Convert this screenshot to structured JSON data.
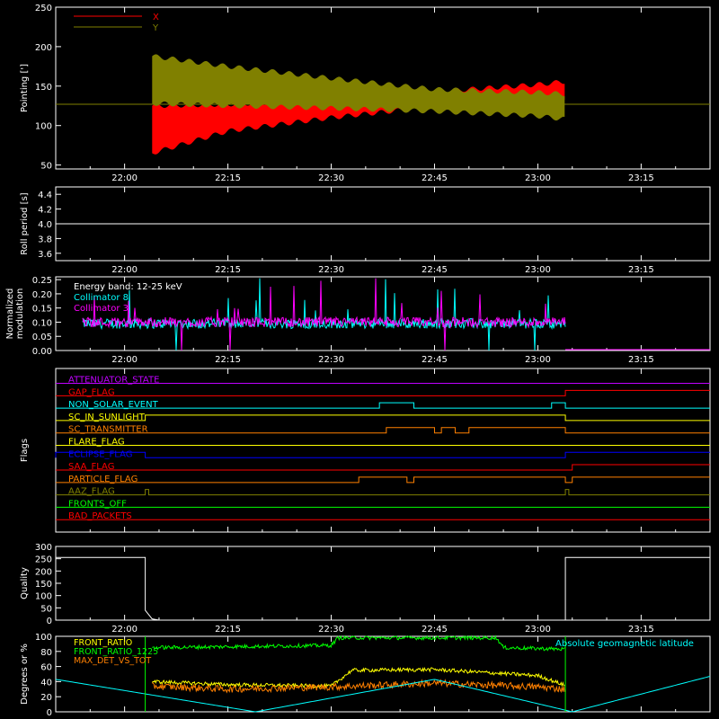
{
  "x_axis": {
    "ticks": [
      "22:00",
      "22:15",
      "22:30",
      "22:45",
      "23:00",
      "23:15"
    ],
    "range": [
      "21:50",
      "23:25"
    ]
  },
  "colors": {
    "background": "#000000",
    "axes": "#ffffff",
    "red": "#ff0000",
    "olive": "#808000",
    "cyan": "#00ffff",
    "magenta": "#ff00ff",
    "green": "#00ff00",
    "orange": "#ff8000",
    "yellow": "#ffff00",
    "blue": "#0000ff",
    "purple": "#c000ff"
  },
  "chart_data": [
    {
      "type": "line",
      "ylabel": "Pointing [']",
      "ylim": [
        45,
        250
      ],
      "yticks": [
        "50",
        "100",
        "150",
        "200",
        "250"
      ],
      "legend": [
        "X",
        "Y"
      ],
      "legend_position": "top-left",
      "series": [
        {
          "name": "X",
          "color": "red",
          "envelope": [
            {
              "t": "22:04",
              "lo": 65,
              "hi": 125
            },
            {
              "t": "22:15",
              "lo": 93,
              "hi": 127
            },
            {
              "t": "22:30",
              "lo": 110,
              "hi": 133
            },
            {
              "t": "22:45",
              "lo": 124,
              "hi": 143
            },
            {
              "t": "23:00",
              "lo": 128,
              "hi": 152
            },
            {
              "t": "23:04",
              "lo": 130,
              "hi": 156
            }
          ]
        },
        {
          "name": "Y",
          "color": "olive",
          "envelope": [
            {
              "t": "22:04",
              "lo": 128,
              "hi": 188
            },
            {
              "t": "22:15",
              "lo": 125,
              "hi": 175
            },
            {
              "t": "22:30",
              "lo": 122,
              "hi": 160
            },
            {
              "t": "22:45",
              "lo": 118,
              "hi": 146
            },
            {
              "t": "23:00",
              "lo": 112,
              "hi": 142
            },
            {
              "t": "23:04",
              "lo": 108,
              "hi": 140
            }
          ]
        }
      ],
      "baseline": 127
    },
    {
      "type": "line",
      "ylabel": "Roll period [s]",
      "ylim": [
        3.5,
        4.5
      ],
      "yticks": [
        "3.6",
        "3.8",
        "4.0",
        "4.2",
        "4.4"
      ],
      "series": [
        {
          "color": "axes",
          "values": [
            {
              "t": "21:50",
              "y": 4.0
            },
            {
              "t": "23:25",
              "y": 4.0
            }
          ]
        }
      ]
    },
    {
      "type": "line",
      "ylabel": "Normalized modulation",
      "ylim": [
        0,
        0.26
      ],
      "yticks": [
        "0.00",
        "0.05",
        "0.10",
        "0.15",
        "0.20",
        "0.25"
      ],
      "annotation": "Energy band: 12-25 keV",
      "legend": [
        "Collimator 8",
        "Collimator 3"
      ],
      "series": [
        {
          "name": "Collimator 8",
          "color": "cyan",
          "level": 0.095,
          "active": [
            "21:50",
            "23:04"
          ]
        },
        {
          "name": "Collimator 3",
          "color": "magenta",
          "level": 0.1,
          "active": [
            "21:50",
            "23:04"
          ]
        }
      ]
    },
    {
      "type": "table",
      "ylabel": "Flags",
      "rows": [
        {
          "label": "ATTENUATOR_STATE",
          "color": "purple",
          "steps": []
        },
        {
          "label": "GAP_FLAG",
          "color": "red",
          "steps": [
            [
              "23:04",
              1
            ]
          ]
        },
        {
          "label": "NON_SOLAR_EVENT",
          "color": "cyan",
          "steps": [
            [
              "22:37",
              1
            ],
            [
              "22:42",
              0
            ],
            [
              "23:02",
              1
            ],
            [
              "23:04",
              0
            ]
          ]
        },
        {
          "label": "SC_IN_SUNLIGHT",
          "color": "yellow",
          "steps": [
            [
              "22:03",
              1
            ],
            [
              "23:04",
              0
            ]
          ]
        },
        {
          "label": "SC_TRANSMITTER",
          "color": "orange",
          "steps": [
            [
              "22:38",
              1
            ],
            [
              "22:45",
              0
            ],
            [
              "22:46",
              1
            ],
            [
              "22:48",
              0
            ],
            [
              "22:50",
              1
            ],
            [
              "23:04",
              0
            ]
          ]
        },
        {
          "label": "FLARE_FLAG",
          "color": "yellow",
          "steps": []
        },
        {
          "label": "ECLIPSE_FLAG",
          "color": "blue",
          "steps": [
            [
              "21:50",
              1
            ],
            [
              "22:03",
              0
            ],
            [
              "23:04",
              1
            ]
          ]
        },
        {
          "label": "SAA_FLAG",
          "color": "red",
          "steps": [
            [
              "23:05",
              1
            ]
          ]
        },
        {
          "label": "PARTICLE_FLAG",
          "color": "orange",
          "steps": [
            [
              "22:34",
              1
            ],
            [
              "22:41",
              0
            ],
            [
              "22:42",
              1
            ],
            [
              "23:04",
              0
            ],
            [
              "23:05",
              1
            ]
          ]
        },
        {
          "label": "AAZ_FLAG",
          "color": "olive",
          "steps": [
            [
              "22:03",
              1
            ],
            [
              "22:03.5",
              0
            ],
            [
              "23:04",
              1
            ],
            [
              "23:04.5",
              0
            ]
          ]
        },
        {
          "label": "FRONTS_OFF",
          "color": "green",
          "steps": []
        },
        {
          "label": "BAD_PACKETS",
          "color": "red",
          "steps": []
        }
      ]
    },
    {
      "type": "line",
      "ylabel": "Quality",
      "ylim": [
        0,
        300
      ],
      "yticks": [
        "0",
        "50",
        "100",
        "150",
        "200",
        "250",
        "300"
      ],
      "series": [
        {
          "color": "axes",
          "values": [
            {
              "t": "21:50",
              "y": 255
            },
            {
              "t": "22:03",
              "y": 255
            },
            {
              "t": "22:03",
              "y": 40
            },
            {
              "t": "22:04",
              "y": 5
            },
            {
              "t": "22:05",
              "y": 0
            },
            {
              "t": "23:04",
              "y": 0
            },
            {
              "t": "23:04",
              "y": 255
            },
            {
              "t": "23:25",
              "y": 255
            }
          ]
        }
      ]
    },
    {
      "type": "line",
      "ylabel": "Degrees or %",
      "ylim": [
        0,
        100
      ],
      "yticks": [
        "0",
        "20",
        "40",
        "60",
        "80",
        "100"
      ],
      "legend": [
        "FRONT_RATIO",
        "FRONT_RATIO_1225",
        "MAX_DET_VS_TOT"
      ],
      "annotation": "Absolute geomagnetic latitude",
      "series": [
        {
          "name": "FRONT_RATIO",
          "color": "yellow",
          "values": [
            {
              "t": "22:04",
              "y": 40
            },
            {
              "t": "22:15",
              "y": 36
            },
            {
              "t": "22:30",
              "y": 34
            },
            {
              "t": "22:33",
              "y": 55
            },
            {
              "t": "22:45",
              "y": 56
            },
            {
              "t": "23:00",
              "y": 48
            },
            {
              "t": "23:04",
              "y": 35
            }
          ]
        },
        {
          "name": "FRONT_RATIO_1225",
          "color": "green",
          "values": [
            {
              "t": "22:04",
              "y": 85
            },
            {
              "t": "22:30",
              "y": 88
            },
            {
              "t": "22:31",
              "y": 98
            },
            {
              "t": "22:54",
              "y": 98
            },
            {
              "t": "22:55",
              "y": 85
            },
            {
              "t": "23:04",
              "y": 83
            }
          ]
        },
        {
          "name": "MAX_DET_VS_TOT",
          "color": "orange",
          "values": [
            {
              "t": "22:04",
              "y": 34
            },
            {
              "t": "22:15",
              "y": 30
            },
            {
              "t": "22:30",
              "y": 33
            },
            {
              "t": "22:45",
              "y": 38
            },
            {
              "t": "23:00",
              "y": 33
            },
            {
              "t": "23:04",
              "y": 30
            }
          ]
        },
        {
          "name": "Absolute geomagnetic latitude",
          "color": "cyan",
          "values": [
            {
              "t": "21:50",
              "y": 43
            },
            {
              "t": "22:19",
              "y": 0
            },
            {
              "t": "22:45",
              "y": 43
            },
            {
              "t": "23:05",
              "y": 0
            },
            {
              "t": "23:25",
              "y": 47
            }
          ]
        }
      ]
    }
  ]
}
